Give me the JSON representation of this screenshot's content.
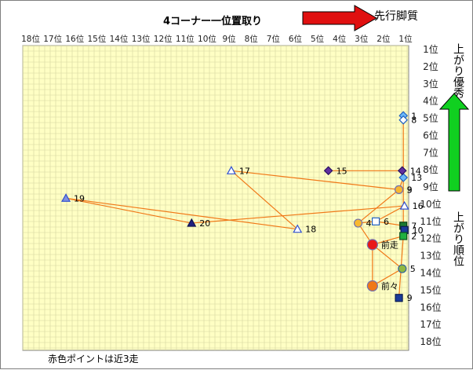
{
  "chart_data": {
    "type": "scatter",
    "title": "4コーナー一位置取り",
    "x_axis": {
      "labels": [
        "18位",
        "17位",
        "16位",
        "15位",
        "14位",
        "13位",
        "12位",
        "11位",
        "10位",
        "9位",
        "8位",
        "7位",
        "6位",
        "5位",
        "4位",
        "3位",
        "2位",
        "1位"
      ],
      "reversed": true,
      "range": [
        18,
        1
      ]
    },
    "y_axis": {
      "labels": [
        "1位",
        "2位",
        "3位",
        "4位",
        "5位",
        "6位",
        "7位",
        "8位",
        "9位",
        "10位",
        "11位",
        "12位",
        "13位",
        "14位",
        "15位",
        "16位",
        "17位",
        "18位"
      ],
      "reversed": true,
      "range": [
        1,
        18
      ]
    },
    "grid": true,
    "top_arrow_label": "先行脚質",
    "right_top_label": "上がり優秀",
    "right_bottom_label": "上がり順位",
    "footer": "赤色ポイントは近3走",
    "colors": {
      "line": "#f07818",
      "plot_bg": "#ffffc4",
      "grid": "#d6d6a0",
      "top_arrow": "#e01010",
      "side_arrow": "#10d020"
    },
    "points": [
      {
        "label": "1",
        "x": 1.1,
        "y": 4.85,
        "shape": "diamond",
        "fill": "#6ab8f8",
        "stroke": "#2060c0"
      },
      {
        "label": "8",
        "x": 1.1,
        "y": 5.1,
        "shape": "diamond",
        "fill": "#ffffff",
        "stroke": "#2060c0"
      },
      {
        "label": "13",
        "x": 1.1,
        "y": 8.45,
        "shape": "diamond",
        "fill": "#6ab8f8",
        "stroke": "#2060c0"
      },
      {
        "label": "14",
        "x": 1.15,
        "y": 8.05,
        "shape": "diamond",
        "fill": "#6030a0",
        "stroke": "#2a1060"
      },
      {
        "label": "15",
        "x": 4.5,
        "y": 8.05,
        "shape": "diamond",
        "fill": "#6030a0",
        "stroke": "#2a1060"
      },
      {
        "label": "17",
        "x": 8.9,
        "y": 8.05,
        "shape": "triangle",
        "fill": "#ffffff",
        "stroke": "#3050d0"
      },
      {
        "label": "19",
        "x": 16.4,
        "y": 9.65,
        "shape": "triangle",
        "fill": "#8090e0",
        "stroke": "#3050d0"
      },
      {
        "label": "20",
        "x": 10.7,
        "y": 11.1,
        "shape": "triangle",
        "fill": "#202080",
        "stroke": "#101050"
      },
      {
        "label": "18",
        "x": 5.9,
        "y": 11.45,
        "shape": "triangle",
        "fill": "#ffffff",
        "stroke": "#3050d0"
      },
      {
        "label": "16",
        "x": 1.05,
        "y": 10.1,
        "shape": "triangle",
        "fill": "#ffffff",
        "stroke": "#3050d0"
      },
      {
        "label": "3",
        "x": 1.3,
        "y": 9.15,
        "shape": "circle",
        "fill": "#f8b830",
        "stroke": "#7070b0"
      },
      {
        "label": "9",
        "x": 1.3,
        "y": 9.15,
        "shape": "none",
        "fill": "none",
        "stroke": "none"
      },
      {
        "label": "4",
        "x": 3.15,
        "y": 11.1,
        "shape": "circle",
        "fill": "#f8b830",
        "stroke": "#7070b0"
      },
      {
        "label": "6",
        "x": 2.35,
        "y": 11.0,
        "shape": "square",
        "fill": "#ffffff",
        "stroke": "#2060c0"
      },
      {
        "label": "7",
        "x": 1.1,
        "y": 11.25,
        "shape": "square",
        "fill": "#1a7a30",
        "stroke": "#0c4018"
      },
      {
        "label": "10",
        "x": 1.05,
        "y": 11.5,
        "shape": "square",
        "fill": "#1a3a9a",
        "stroke": "#0c1c50"
      },
      {
        "label": "2",
        "x": 1.1,
        "y": 11.85,
        "shape": "square",
        "fill": "#20b040",
        "stroke": "#0c5020"
      },
      {
        "label": "前走",
        "x": 2.5,
        "y": 12.35,
        "shape": "circle",
        "fill": "#e81818",
        "stroke": "#7070b0",
        "size": "large"
      },
      {
        "label": "5",
        "x": 1.15,
        "y": 13.75,
        "shape": "circle",
        "fill": "#90b840",
        "stroke": "#3060a0"
      },
      {
        "label": "前々",
        "x": 2.5,
        "y": 14.75,
        "shape": "circle",
        "fill": "#f07818",
        "stroke": "#7070b0",
        "size": "large"
      },
      {
        "label": "9",
        "x": 1.3,
        "y": 15.45,
        "shape": "square",
        "fill": "#1a3a9a",
        "stroke": "#0c1c50"
      }
    ],
    "connections": [
      [
        "1",
        "8"
      ],
      [
        "8",
        "13"
      ],
      [
        "13",
        "14"
      ],
      [
        "14",
        "15"
      ],
      [
        "13",
        "3"
      ],
      [
        "3",
        "17"
      ],
      [
        "17",
        "18"
      ],
      [
        "18",
        "19"
      ],
      [
        "19",
        "20"
      ],
      [
        "20",
        "16"
      ],
      [
        "3",
        "4"
      ],
      [
        "4",
        "前走"
      ],
      [
        "前走",
        "前々"
      ],
      [
        "前々",
        "5"
      ],
      [
        "5",
        "前走"
      ],
      [
        "4",
        "6"
      ],
      [
        "6",
        "7"
      ],
      [
        "7",
        "10"
      ],
      [
        "10",
        "2"
      ],
      [
        "2",
        "9"
      ],
      [
        "13",
        "7"
      ],
      [
        "16",
        "6"
      ],
      [
        "2",
        "前走"
      ]
    ]
  }
}
